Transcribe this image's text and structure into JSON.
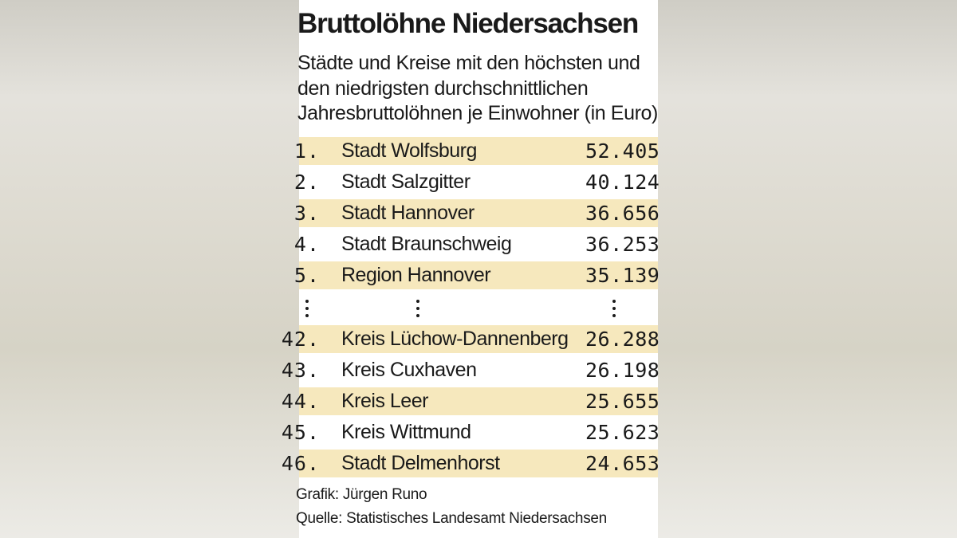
{
  "colors": {
    "panel_background": "#ffffff",
    "row_shade": "#f6e8bd",
    "text": "#1a1a1a"
  },
  "chart_data": {
    "type": "table",
    "title": "Bruttolöhne Niedersachsen",
    "subtitle_lines": [
      "Städte und Kreise mit den höchsten und",
      "den niedrigsten durchschnittlichen",
      "Jahresbruttolöhnen je Einwohner (in Euro)"
    ],
    "unit": "Euro",
    "top_rows": [
      {
        "rank": "1.",
        "name": "Stadt Wolfsburg",
        "value": "52.405"
      },
      {
        "rank": "2.",
        "name": "Stadt Salzgitter",
        "value": "40.124"
      },
      {
        "rank": "3.",
        "name": "Stadt Hannover",
        "value": "36.656"
      },
      {
        "rank": "4.",
        "name": "Stadt Braunschweig",
        "value": "36.253"
      },
      {
        "rank": "5.",
        "name": "Region Hannover",
        "value": "35.139"
      }
    ],
    "bottom_rows": [
      {
        "rank": "42.",
        "name": "Kreis Lüchow-Dannenberg",
        "value": "26.288"
      },
      {
        "rank": "43.",
        "name": "Kreis Cuxhaven",
        "value": "26.198"
      },
      {
        "rank": "44.",
        "name": "Kreis Leer",
        "value": "25.655"
      },
      {
        "rank": "45.",
        "name": "Kreis Wittmund",
        "value": "25.623"
      },
      {
        "rank": "46.",
        "name": "Stadt Delmenhorst",
        "value": "24.653"
      }
    ],
    "credit": "Grafik: Jürgen Runo",
    "source": "Quelle: Statistisches Landesamt Niedersachsen"
  }
}
